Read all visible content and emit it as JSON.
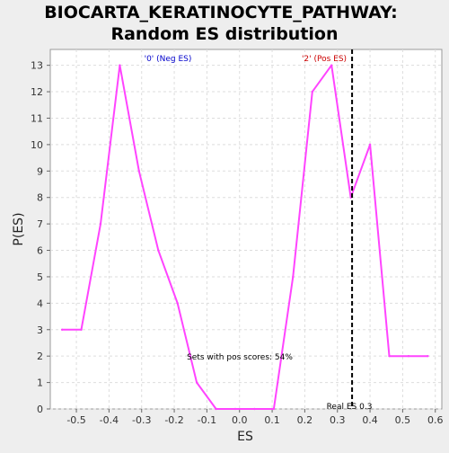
{
  "chart_data": {
    "type": "line",
    "title": [
      "BIOCARTA_KERATINOCYTE_PATHWAY:",
      "Random ES distribution"
    ],
    "xlabel": "ES",
    "ylabel": "P(ES)",
    "xlim": [
      -0.58,
      0.62
    ],
    "ylim": [
      0,
      13.6
    ],
    "xticks": [
      -0.5,
      -0.4,
      -0.3,
      -0.2,
      -0.1,
      0.0,
      0.1,
      0.2,
      0.3,
      0.4,
      0.5,
      0.6
    ],
    "xtick_labels": [
      "-0.5",
      "-0.4",
      "-0.3",
      "-0.2",
      "-0.1",
      "0.0",
      "0.1",
      "0.2",
      "0.3",
      "0.4",
      "0.5",
      "0.6"
    ],
    "yticks": [
      0,
      1,
      2,
      3,
      4,
      5,
      6,
      7,
      8,
      9,
      10,
      11,
      12,
      13
    ],
    "ytick_labels": [
      "0",
      "1",
      "2",
      "3",
      "4",
      "5",
      "6",
      "7",
      "8",
      "9",
      "10",
      "11",
      "12",
      "13"
    ],
    "grid": true,
    "series": [
      {
        "color": "#ff44ff",
        "x": [
          -0.544,
          -0.485,
          -0.426,
          -0.367,
          -0.308,
          -0.249,
          -0.19,
          -0.131,
          -0.072,
          -0.013,
          0.046,
          0.105,
          0.164,
          0.223,
          0.282,
          0.341,
          0.4,
          0.459,
          0.518,
          0.577
        ],
        "y": [
          3,
          3,
          7,
          13,
          9,
          6,
          4,
          1,
          0,
          0,
          0,
          0,
          5,
          12,
          13,
          8,
          10,
          2,
          2,
          2
        ]
      }
    ],
    "real_es": {
      "value": 0.345,
      "label": "Real ES 0.3",
      "color": "#000000"
    },
    "annotations": {
      "neg_label": "'0' (Neg ES)",
      "neg_color": "#0000cc",
      "pos_label": "'2' (Pos ES)",
      "pos_color": "#cc0000",
      "pos_scores_text": "Sets with pos scores: 54%"
    }
  }
}
